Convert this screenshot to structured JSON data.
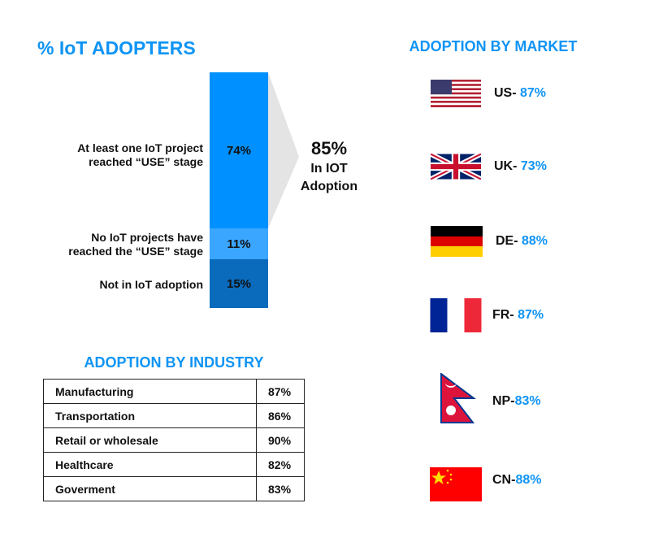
{
  "adopters": {
    "title": "% IoT ADOPTERS",
    "summary_value": "85%",
    "summary_line1": "In IOT",
    "summary_line2": "Adoption"
  },
  "chart_data": {
    "type": "bar",
    "title": "% IoT ADOPTERS",
    "stacked": true,
    "categories": [
      "At least one IoT project reached “USE” stage",
      "No IoT projects have reached the “USE” stage",
      "Not in IoT adoption"
    ],
    "values": [
      74,
      11,
      15
    ],
    "labels": [
      "74%",
      "11%",
      "15%"
    ],
    "label_lines": [
      [
        "At least one IoT project",
        "reached “USE” stage"
      ],
      [
        "No IoT projects have",
        "reached the “USE” stage"
      ],
      [
        "Not in IoT adoption"
      ]
    ],
    "colors": [
      "#0090ff",
      "#3aa6ff",
      "#0a6bbd"
    ]
  },
  "industry": {
    "title": "ADOPTION BY INDUSTRY",
    "rows": [
      {
        "name": "Manufacturing",
        "value": "87%"
      },
      {
        "name": "Transportation",
        "value": "86%"
      },
      {
        "name": "Retail or wholesale",
        "value": "90%"
      },
      {
        "name": "Healthcare",
        "value": "82%"
      },
      {
        "name": "Goverment",
        "value": "83%"
      }
    ]
  },
  "market": {
    "title": "ADOPTION BY MARKET",
    "items": [
      {
        "code": "US- ",
        "value": "87%"
      },
      {
        "code": "UK- ",
        "value": "73%"
      },
      {
        "code": "DE- ",
        "value": "88%"
      },
      {
        "code": "FR- ",
        "value": "87%"
      },
      {
        "code": "NP-",
        "value": "83%"
      },
      {
        "code": "CN-",
        "value": "88%"
      }
    ]
  }
}
